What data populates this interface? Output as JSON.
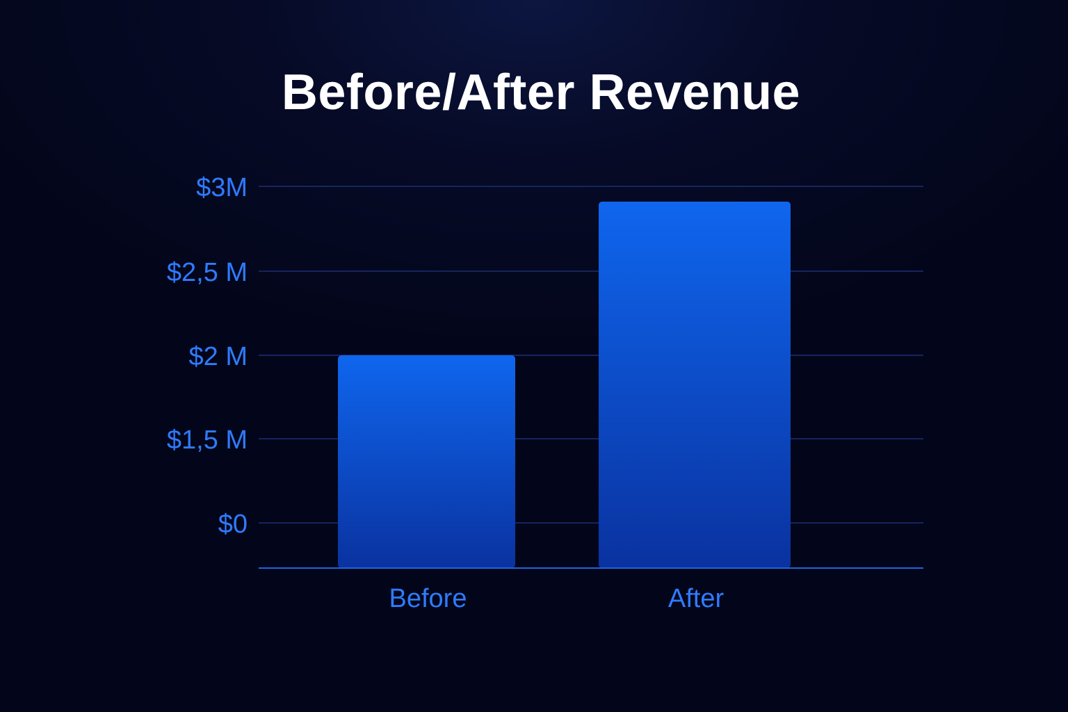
{
  "chart_data": {
    "type": "bar",
    "title": "Before/After Revenue",
    "categories": [
      "Before",
      "After"
    ],
    "values": [
      2.0,
      2.91
    ],
    "unit": "$M",
    "yticks": [
      {
        "value": 0,
        "label": "$0"
      },
      {
        "value": 1.5,
        "label": "$1,5 M"
      },
      {
        "value": 2.0,
        "label": "$2 M"
      },
      {
        "value": 2.5,
        "label": "$2,5 M"
      },
      {
        "value": 3.0,
        "label": "$3M"
      }
    ],
    "xlabel": "",
    "ylabel": "",
    "grid": true,
    "colors": {
      "bar_top": "#0f66ee",
      "bar_bottom": "#0a32a0",
      "grid": "#17245e",
      "axis": "#1f63e0",
      "label": "#2f7bff",
      "title": "#ffffff"
    }
  }
}
